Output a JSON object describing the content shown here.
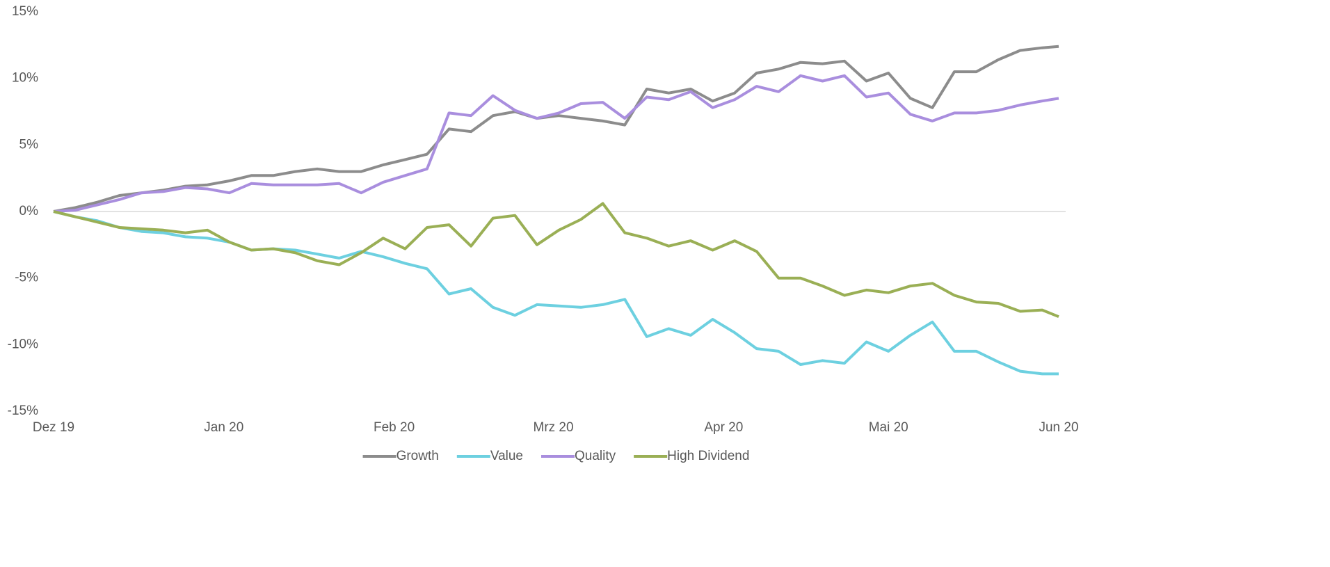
{
  "chart_data": {
    "type": "line",
    "x": [
      0,
      4,
      8,
      12,
      16,
      20,
      24,
      28,
      32,
      36,
      40,
      44,
      48,
      52,
      56,
      60,
      64,
      68,
      72,
      76,
      80,
      84,
      88,
      92,
      96,
      100,
      104,
      108,
      112,
      116,
      120,
      124,
      128,
      132,
      136,
      140,
      144,
      148,
      152,
      156,
      160,
      164,
      168,
      172,
      176,
      180,
      183
    ],
    "xlim": [
      0,
      183
    ],
    "xticks": [
      {
        "value": 0,
        "label": "Dez 19"
      },
      {
        "value": 31,
        "label": "Jan 20"
      },
      {
        "value": 62,
        "label": "Feb 20"
      },
      {
        "value": 91,
        "label": "Mrz 20"
      },
      {
        "value": 122,
        "label": "Apr 20"
      },
      {
        "value": 152,
        "label": "Mai 20"
      },
      {
        "value": 183,
        "label": "Jun 20"
      }
    ],
    "ylim": [
      -15,
      15
    ],
    "yticks": [
      {
        "value": -15,
        "label": "-15%"
      },
      {
        "value": -10,
        "label": "-10%"
      },
      {
        "value": -5,
        "label": "-5%"
      },
      {
        "value": 0,
        "label": "0%"
      },
      {
        "value": 5,
        "label": "5%"
      },
      {
        "value": 10,
        "label": "10%"
      },
      {
        "value": 15,
        "label": "15%"
      }
    ],
    "zero_line": true,
    "legend": "bottom",
    "series": [
      {
        "name": "Growth",
        "color": "#8c8c8c",
        "values": [
          0,
          0.3,
          0.7,
          1.2,
          1.4,
          1.6,
          1.9,
          2.0,
          2.3,
          2.7,
          2.7,
          3.0,
          3.2,
          3.0,
          3.0,
          3.5,
          3.9,
          4.3,
          6.2,
          6.0,
          7.2,
          7.5,
          7.0,
          7.2,
          7.0,
          6.8,
          6.5,
          9.2,
          8.9,
          9.2,
          8.3,
          8.9,
          10.4,
          10.7,
          11.2,
          11.1,
          11.3,
          9.8,
          10.4,
          8.5,
          7.8,
          10.5,
          10.5,
          11.4,
          12.1,
          12.3,
          12.4
        ]
      },
      {
        "name": "Value",
        "color": "#6dd0e0",
        "values": [
          0,
          -0.4,
          -0.7,
          -1.2,
          -1.5,
          -1.6,
          -1.9,
          -2.0,
          -2.3,
          -2.9,
          -2.8,
          -2.9,
          -3.2,
          -3.5,
          -3.0,
          -3.4,
          -3.9,
          -4.3,
          -6.2,
          -5.8,
          -7.2,
          -7.8,
          -7.0,
          -7.1,
          -7.2,
          -7.0,
          -6.6,
          -9.4,
          -8.8,
          -9.3,
          -8.1,
          -9.1,
          -10.3,
          -10.5,
          -11.5,
          -11.2,
          -11.4,
          -9.8,
          -10.5,
          -9.3,
          -8.3,
          -10.5,
          -10.5,
          -11.3,
          -12.0,
          -12.2,
          -12.2
        ]
      },
      {
        "name": "Quality",
        "color": "#a98ede",
        "values": [
          0,
          0.1,
          0.5,
          0.9,
          1.4,
          1.5,
          1.8,
          1.7,
          1.4,
          2.1,
          2.0,
          2.0,
          2.0,
          2.1,
          1.4,
          2.2,
          2.7,
          3.2,
          7.4,
          7.2,
          8.7,
          7.6,
          7.0,
          7.4,
          8.1,
          8.2,
          7.0,
          8.6,
          8.4,
          9.0,
          7.8,
          8.4,
          9.4,
          9.0,
          10.2,
          9.8,
          10.2,
          8.6,
          8.9,
          7.3,
          6.8,
          7.4,
          7.4,
          7.6,
          8.0,
          8.3,
          8.5
        ]
      },
      {
        "name": "High Dividend",
        "color": "#9aaf55",
        "values": [
          0,
          -0.4,
          -0.8,
          -1.2,
          -1.3,
          -1.4,
          -1.6,
          -1.4,
          -2.3,
          -2.9,
          -2.8,
          -3.1,
          -3.7,
          -4.0,
          -3.1,
          -2.0,
          -2.8,
          -1.2,
          -1.0,
          -2.6,
          -0.5,
          -0.3,
          -2.5,
          -1.4,
          -0.6,
          0.6,
          -1.6,
          -2.0,
          -2.6,
          -2.2,
          -2.9,
          -2.2,
          -3.0,
          -5.0,
          -5.0,
          -5.6,
          -6.3,
          -5.9,
          -6.1,
          -5.6,
          -5.4,
          -6.3,
          -6.8,
          -6.9,
          -7.5,
          -7.4,
          -7.9
        ]
      }
    ]
  }
}
